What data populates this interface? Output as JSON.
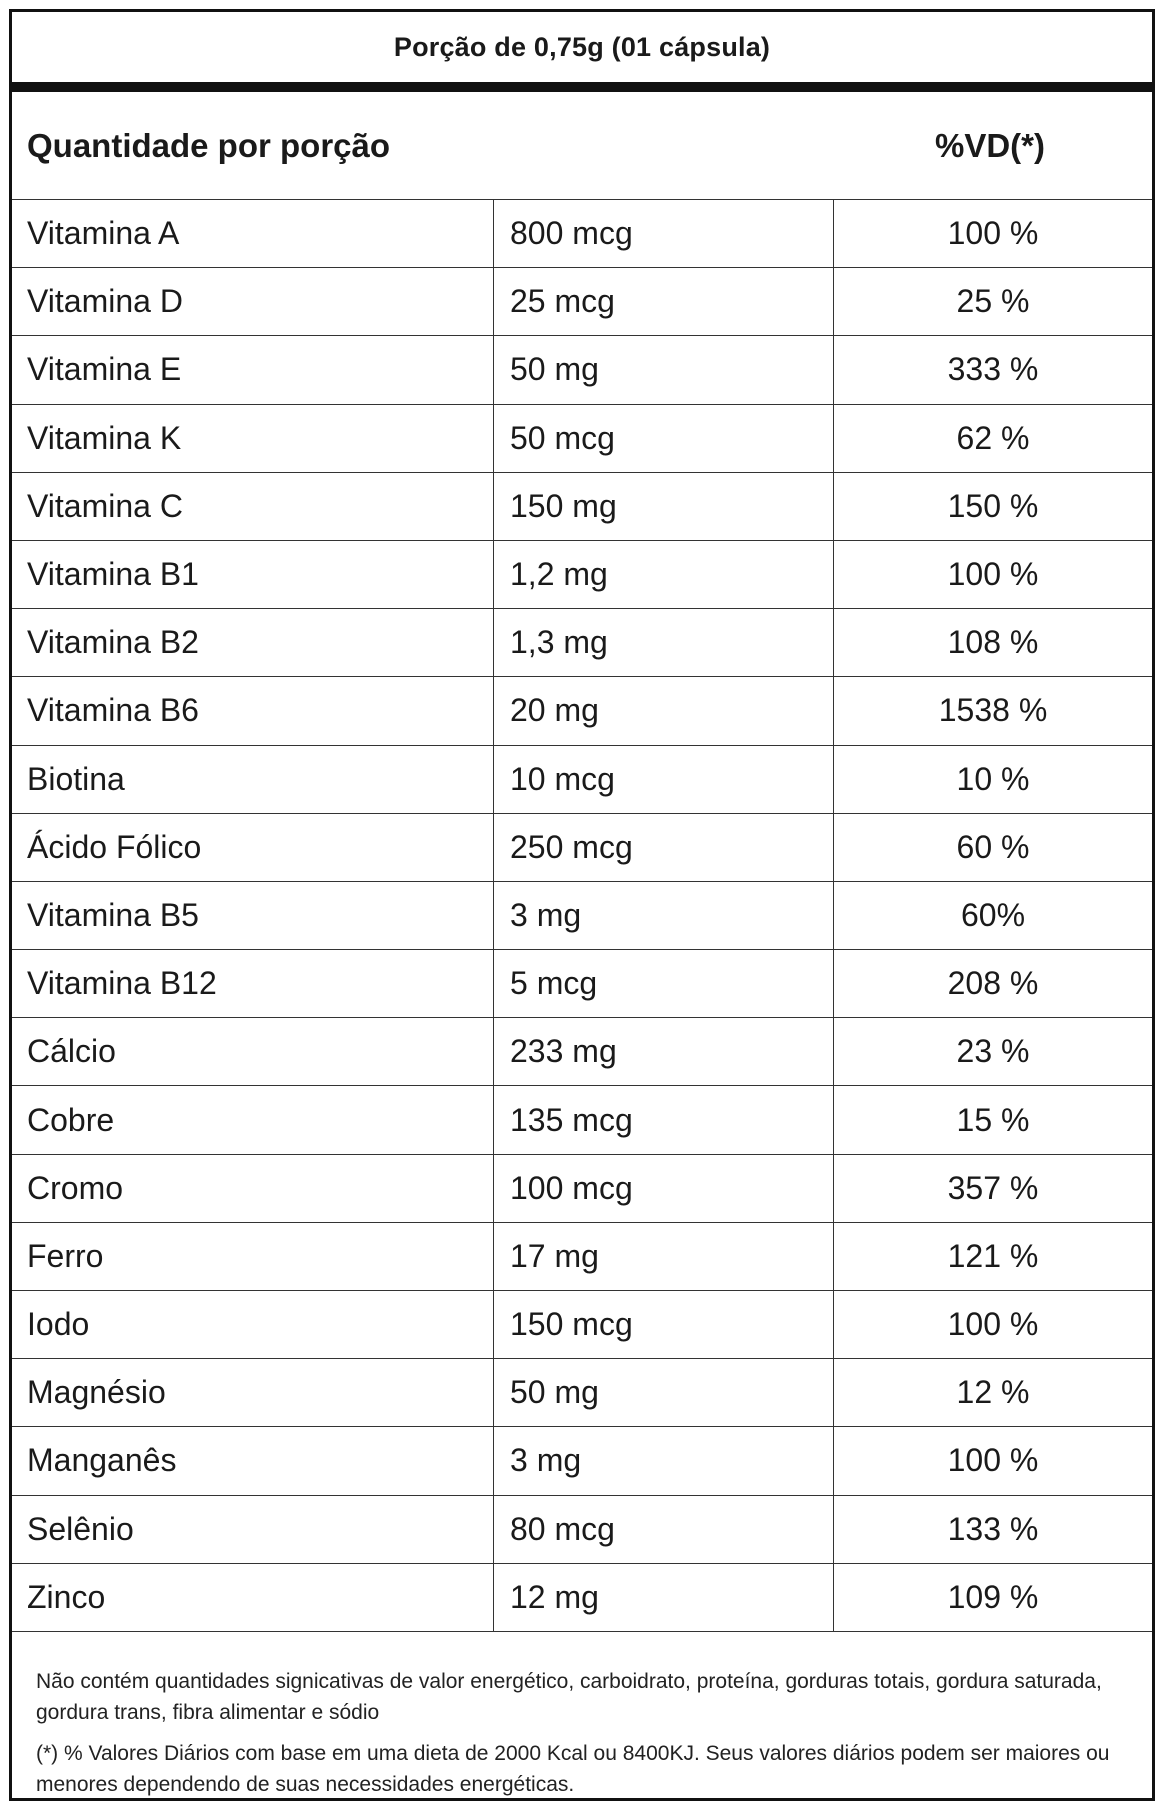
{
  "serving": "Porção de 0,75g (01 cápsula)",
  "header": {
    "quantity": "Quantidade por porção",
    "vd": "%VD(*)"
  },
  "rows": [
    {
      "name": "Vitamina A",
      "amount": "800 mcg",
      "vd": "100 %"
    },
    {
      "name": "Vitamina D",
      "amount": "25 mcg",
      "vd": "25 %"
    },
    {
      "name": "Vitamina E",
      "amount": "50 mg",
      "vd": "333 %"
    },
    {
      "name": "Vitamina K",
      "amount": "50 mcg",
      "vd": "62 %"
    },
    {
      "name": "Vitamina C",
      "amount": "150 mg",
      "vd": "150 %"
    },
    {
      "name": "Vitamina B1",
      "amount": "1,2 mg",
      "vd": "100 %"
    },
    {
      "name": "Vitamina B2",
      "amount": "1,3 mg",
      "vd": "108 %"
    },
    {
      "name": "Vitamina B6",
      "amount": "20 mg",
      "vd": "1538 %"
    },
    {
      "name": "Biotina",
      "amount": "10 mcg",
      "vd": "10 %"
    },
    {
      "name": "Ácido Fólico",
      "amount": "250 mcg",
      "vd": "60 %"
    },
    {
      "name": "Vitamina B5",
      "amount": "3 mg",
      "vd": "60%"
    },
    {
      "name": "Vitamina B12",
      "amount": "5 mcg",
      "vd": "208 %"
    },
    {
      "name": "Cálcio",
      "amount": "233 mg",
      "vd": "23 %"
    },
    {
      "name": "Cobre",
      "amount": "135 mcg",
      "vd": "15 %"
    },
    {
      "name": "Cromo",
      "amount": "100 mcg",
      "vd": "357 %"
    },
    {
      "name": "Ferro",
      "amount": "17 mg",
      "vd": "121 %"
    },
    {
      "name": "Iodo",
      "amount": "150 mcg",
      "vd": "100 %"
    },
    {
      "name": "Magnésio",
      "amount": "50 mg",
      "vd": "12 %"
    },
    {
      "name": "Manganês",
      "amount": "3 mg",
      "vd": "100 %"
    },
    {
      "name": "Selênio",
      "amount": "80 mcg",
      "vd": "133 %"
    },
    {
      "name": "Zinco",
      "amount": "12 mg",
      "vd": "109 %"
    }
  ],
  "notes": {
    "not_significant": "Não contém quantidades signicativas de valor energético, carboidrato, proteína, gorduras totais, gordura saturada, gordura trans, fibra alimentar e sódio",
    "daily_values": "(*) % Valores Diários com base em uma dieta de 2000 Kcal ou 8400KJ. Seus valores diários podem ser maiores ou menores dependendo de suas necessidades energéticas."
  }
}
